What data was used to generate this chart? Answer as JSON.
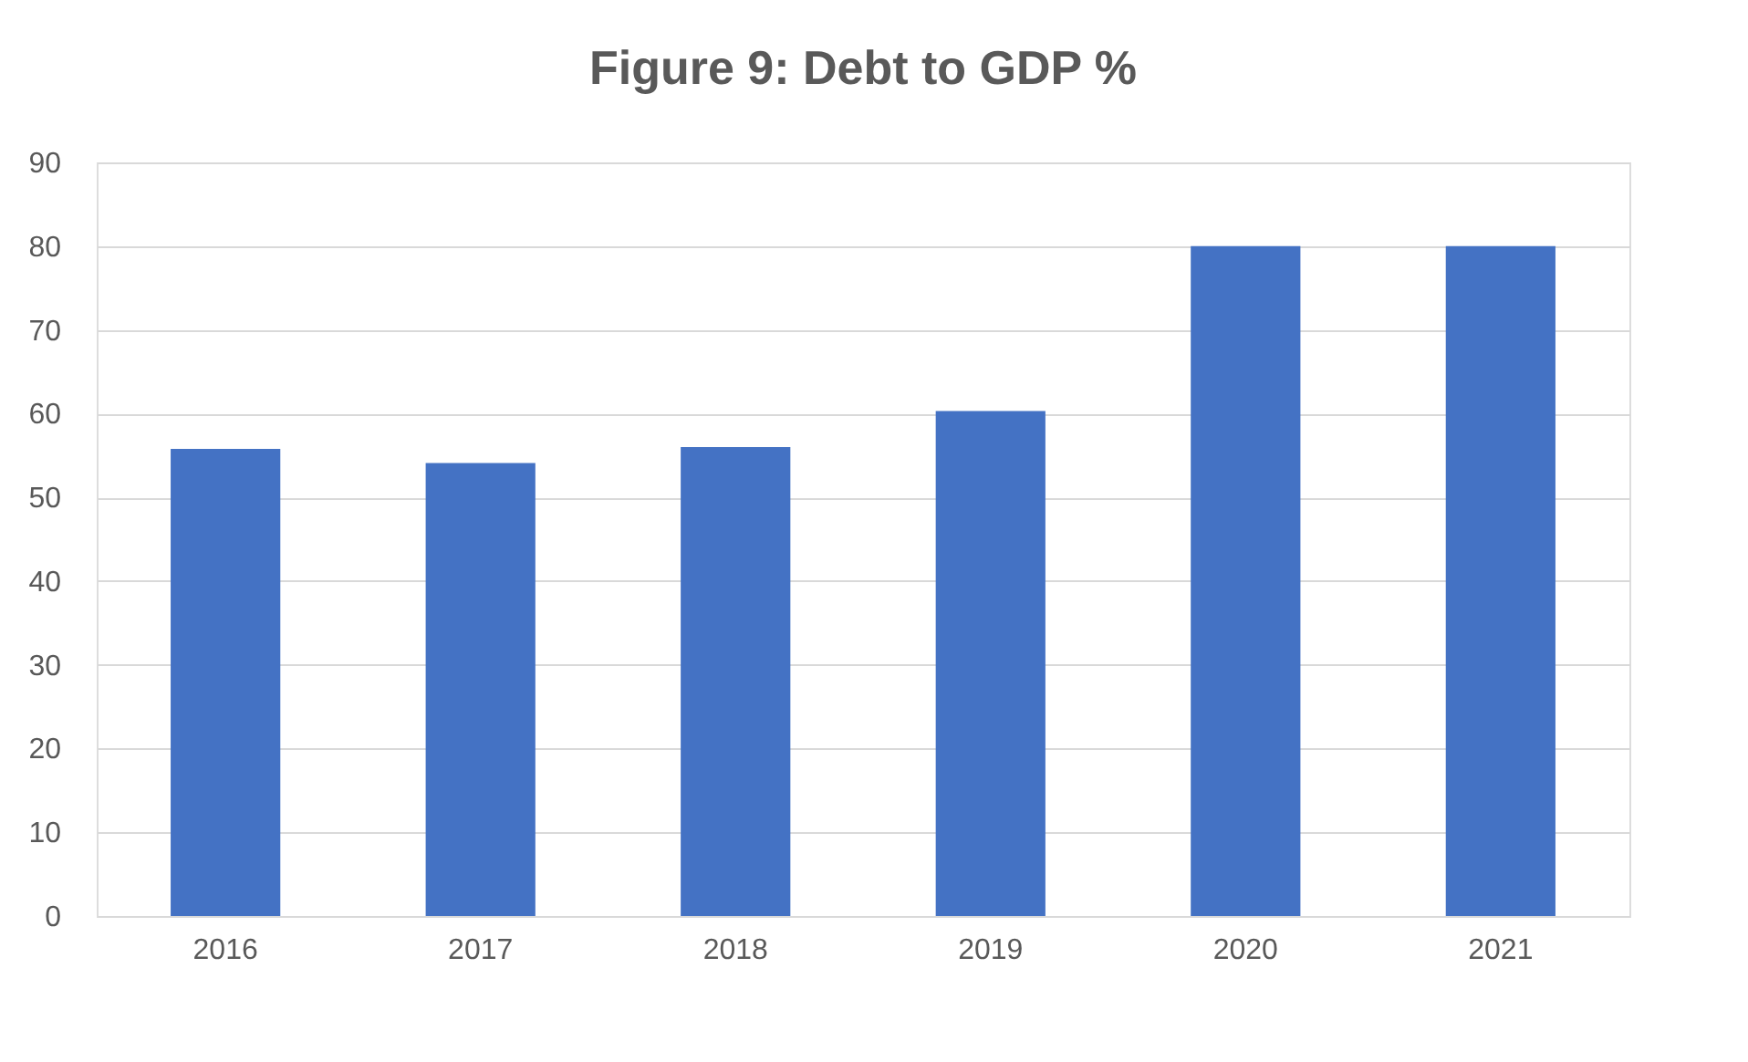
{
  "chart_data": {
    "type": "bar",
    "title": "Figure 9: Debt to GDP %",
    "categories": [
      "2016",
      "2017",
      "2018",
      "2019",
      "2020",
      "2021"
    ],
    "values": [
      55.8,
      54.1,
      56.0,
      60.3,
      80.0,
      80.0
    ],
    "color": "#4472c4",
    "ylim": [
      0,
      90
    ],
    "yticks": [
      0,
      10,
      20,
      30,
      40,
      50,
      60,
      70,
      80,
      90
    ],
    "grid": "y"
  }
}
